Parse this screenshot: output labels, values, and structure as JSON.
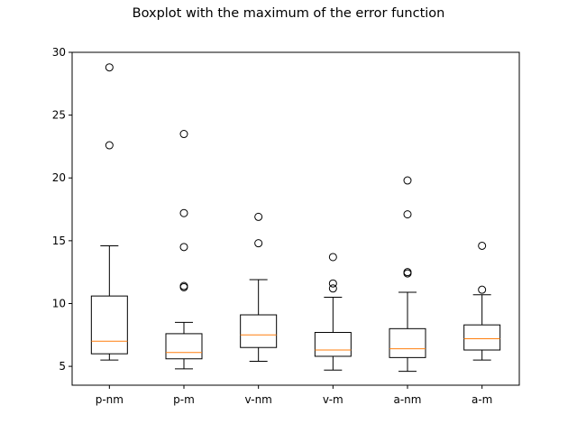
{
  "chart_data": {
    "type": "box",
    "title": "Boxplot with the maximum of the error function",
    "xlabel": "",
    "ylabel": "",
    "categories": [
      "p-nm",
      "p-m",
      "v-nm",
      "v-m",
      "a-nm",
      "a-m"
    ],
    "ylim": [
      3.5,
      30
    ],
    "yticks": [
      5,
      10,
      15,
      20,
      25,
      30
    ],
    "grid": false,
    "colors": {
      "box": "#000000",
      "median": "#ff7f0e",
      "flier": "#000000",
      "background": "#ffffff"
    },
    "boxes": [
      {
        "label": "p-nm",
        "whislo": 5.5,
        "q1": 6.0,
        "med": 7.0,
        "q3": 10.6,
        "whishi": 14.6,
        "fliers": [
          22.6,
          28.8
        ]
      },
      {
        "label": "p-m",
        "whislo": 4.8,
        "q1": 5.6,
        "med": 6.1,
        "q3": 7.6,
        "whishi": 8.5,
        "fliers": [
          11.3,
          11.4,
          14.5,
          17.2,
          23.5
        ]
      },
      {
        "label": "v-nm",
        "whislo": 5.4,
        "q1": 6.5,
        "med": 7.5,
        "q3": 9.1,
        "whishi": 11.9,
        "fliers": [
          14.8,
          16.9
        ]
      },
      {
        "label": "v-m",
        "whislo": 4.7,
        "q1": 5.8,
        "med": 6.3,
        "q3": 7.7,
        "whishi": 10.5,
        "fliers": [
          11.2,
          11.6,
          13.7
        ]
      },
      {
        "label": "a-nm",
        "whislo": 4.6,
        "q1": 5.7,
        "med": 6.4,
        "q3": 8.0,
        "whishi": 10.9,
        "fliers": [
          12.4,
          12.5,
          17.1,
          19.8
        ]
      },
      {
        "label": "a-m",
        "whislo": 5.5,
        "q1": 6.3,
        "med": 7.2,
        "q3": 8.3,
        "whishi": 10.7,
        "fliers": [
          11.1,
          14.6
        ]
      }
    ]
  }
}
